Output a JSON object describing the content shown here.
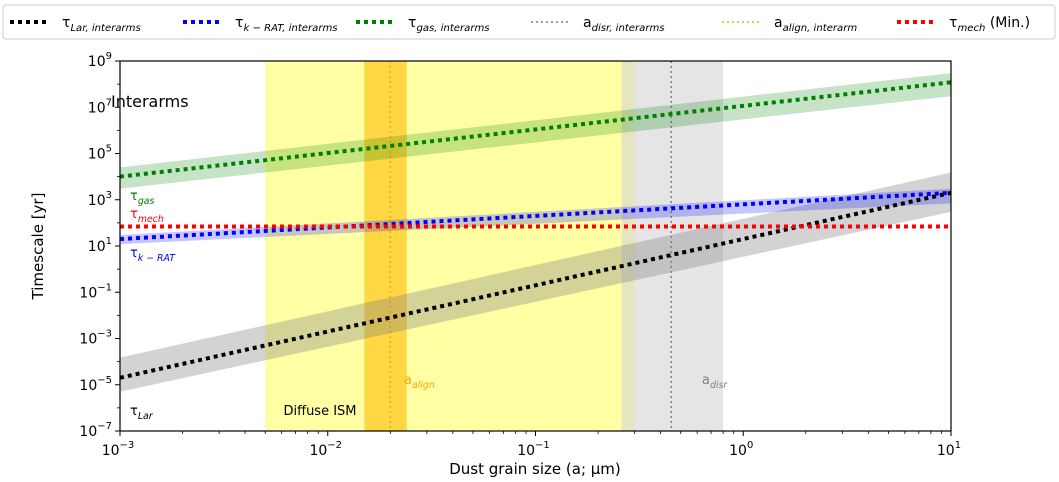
{
  "chart_data": {
    "type": "line",
    "title": "",
    "xlabel": "Dust grain size (a; μm)",
    "ylabel": "Timescale [yr]",
    "xscale": "log",
    "yscale": "log",
    "xlim": [
      0.001,
      10
    ],
    "ylim": [
      1e-07,
      1000000000.0
    ],
    "panel_label": "Interarms",
    "x_ticks": [
      {
        "value": 0.001,
        "base": "10",
        "exp": "−3"
      },
      {
        "value": 0.01,
        "base": "10",
        "exp": "−2"
      },
      {
        "value": 0.1,
        "base": "10",
        "exp": "−1"
      },
      {
        "value": 1,
        "base": "10",
        "exp": "0"
      },
      {
        "value": 10,
        "base": "10",
        "exp": "1"
      }
    ],
    "y_ticks": [
      {
        "value": 1e-07,
        "base": "10",
        "exp": "−7"
      },
      {
        "value": 1e-05,
        "base": "10",
        "exp": "−5"
      },
      {
        "value": 0.001,
        "base": "10",
        "exp": "−3"
      },
      {
        "value": 0.1,
        "base": "10",
        "exp": "−1"
      },
      {
        "value": 10.0,
        "base": "10",
        "exp": "1"
      },
      {
        "value": 1000.0,
        "base": "10",
        "exp": "3"
      },
      {
        "value": 100000.0,
        "base": "10",
        "exp": "5"
      },
      {
        "value": 10000000.0,
        "base": "10",
        "exp": "7"
      },
      {
        "value": 1000000000.0,
        "base": "10",
        "exp": "9"
      }
    ],
    "legend": {
      "placement": "top, outside plot",
      "entries": [
        {
          "symbol": "τ",
          "sub": "Lar, interarms",
          "suffix": "",
          "color": "#000000",
          "style": "thick-dotted"
        },
        {
          "symbol": "τ",
          "sub": "k − RAT, interarms",
          "suffix": "",
          "color": "#0000ff",
          "style": "thick-dotted"
        },
        {
          "symbol": "τ",
          "sub": "gas, interarms",
          "suffix": "",
          "color": "#008000",
          "style": "thick-dotted"
        },
        {
          "symbol": "a",
          "sub": "disr, interarms",
          "suffix": "",
          "color": "#808080",
          "style": "thin-dotted"
        },
        {
          "symbol": "a",
          "sub": "align, interarm",
          "suffix": "",
          "color": "#ffa500",
          "style": "thin-dotted"
        },
        {
          "symbol": "τ",
          "sub": "mech",
          "suffix": " (Min.)",
          "color": "#ff0000",
          "style": "thick-dotted"
        }
      ]
    },
    "series": [
      {
        "key": "lar",
        "color": "#000000",
        "x": [
          0.001,
          10
        ],
        "y": [
          2e-05,
          2000
        ],
        "band_low": [
          5e-06,
          300
        ],
        "band_high": [
          0.00015,
          15000
        ],
        "label_symbol": "τ",
        "label_sub": "Lar"
      },
      {
        "key": "krat",
        "color": "#0000ff",
        "x": [
          0.001,
          10
        ],
        "y": [
          20,
          2000
        ],
        "band_low": [
          12,
          700
        ],
        "band_high": [
          30,
          3000
        ],
        "label_symbol": "τ",
        "label_sub": "k − RAT"
      },
      {
        "key": "gas",
        "color": "#008000",
        "x": [
          0.001,
          10
        ],
        "y": [
          10000.0,
          120000000.0
        ],
        "band_low": [
          3000.0,
          30000000.0
        ],
        "band_high": [
          25000.0,
          300000000.0
        ],
        "label_symbol": "τ",
        "label_sub": "gas"
      },
      {
        "key": "mech",
        "color": "#ff0000",
        "x": [
          0.001,
          10
        ],
        "y": [
          70,
          70
        ],
        "band_low": null,
        "band_high": null,
        "label_symbol": "τ",
        "label_sub": "mech"
      }
    ],
    "regions": [
      {
        "key": "diffuse",
        "x_range": [
          0.005,
          0.3
        ],
        "color": "#ffff99",
        "label": "Diffuse ISM"
      },
      {
        "key": "align",
        "x_range": [
          0.015,
          0.024
        ],
        "color": "#ffd23a",
        "line_x": 0.02,
        "line_color": "#ffa500",
        "label_symbol": "a",
        "label_sub": "align"
      },
      {
        "key": "disr",
        "x_range": [
          0.26,
          0.8
        ],
        "color": "#d3d3d3",
        "line_x": 0.45,
        "line_color": "#808080",
        "label_symbol": "a",
        "label_sub": "disr"
      }
    ]
  }
}
